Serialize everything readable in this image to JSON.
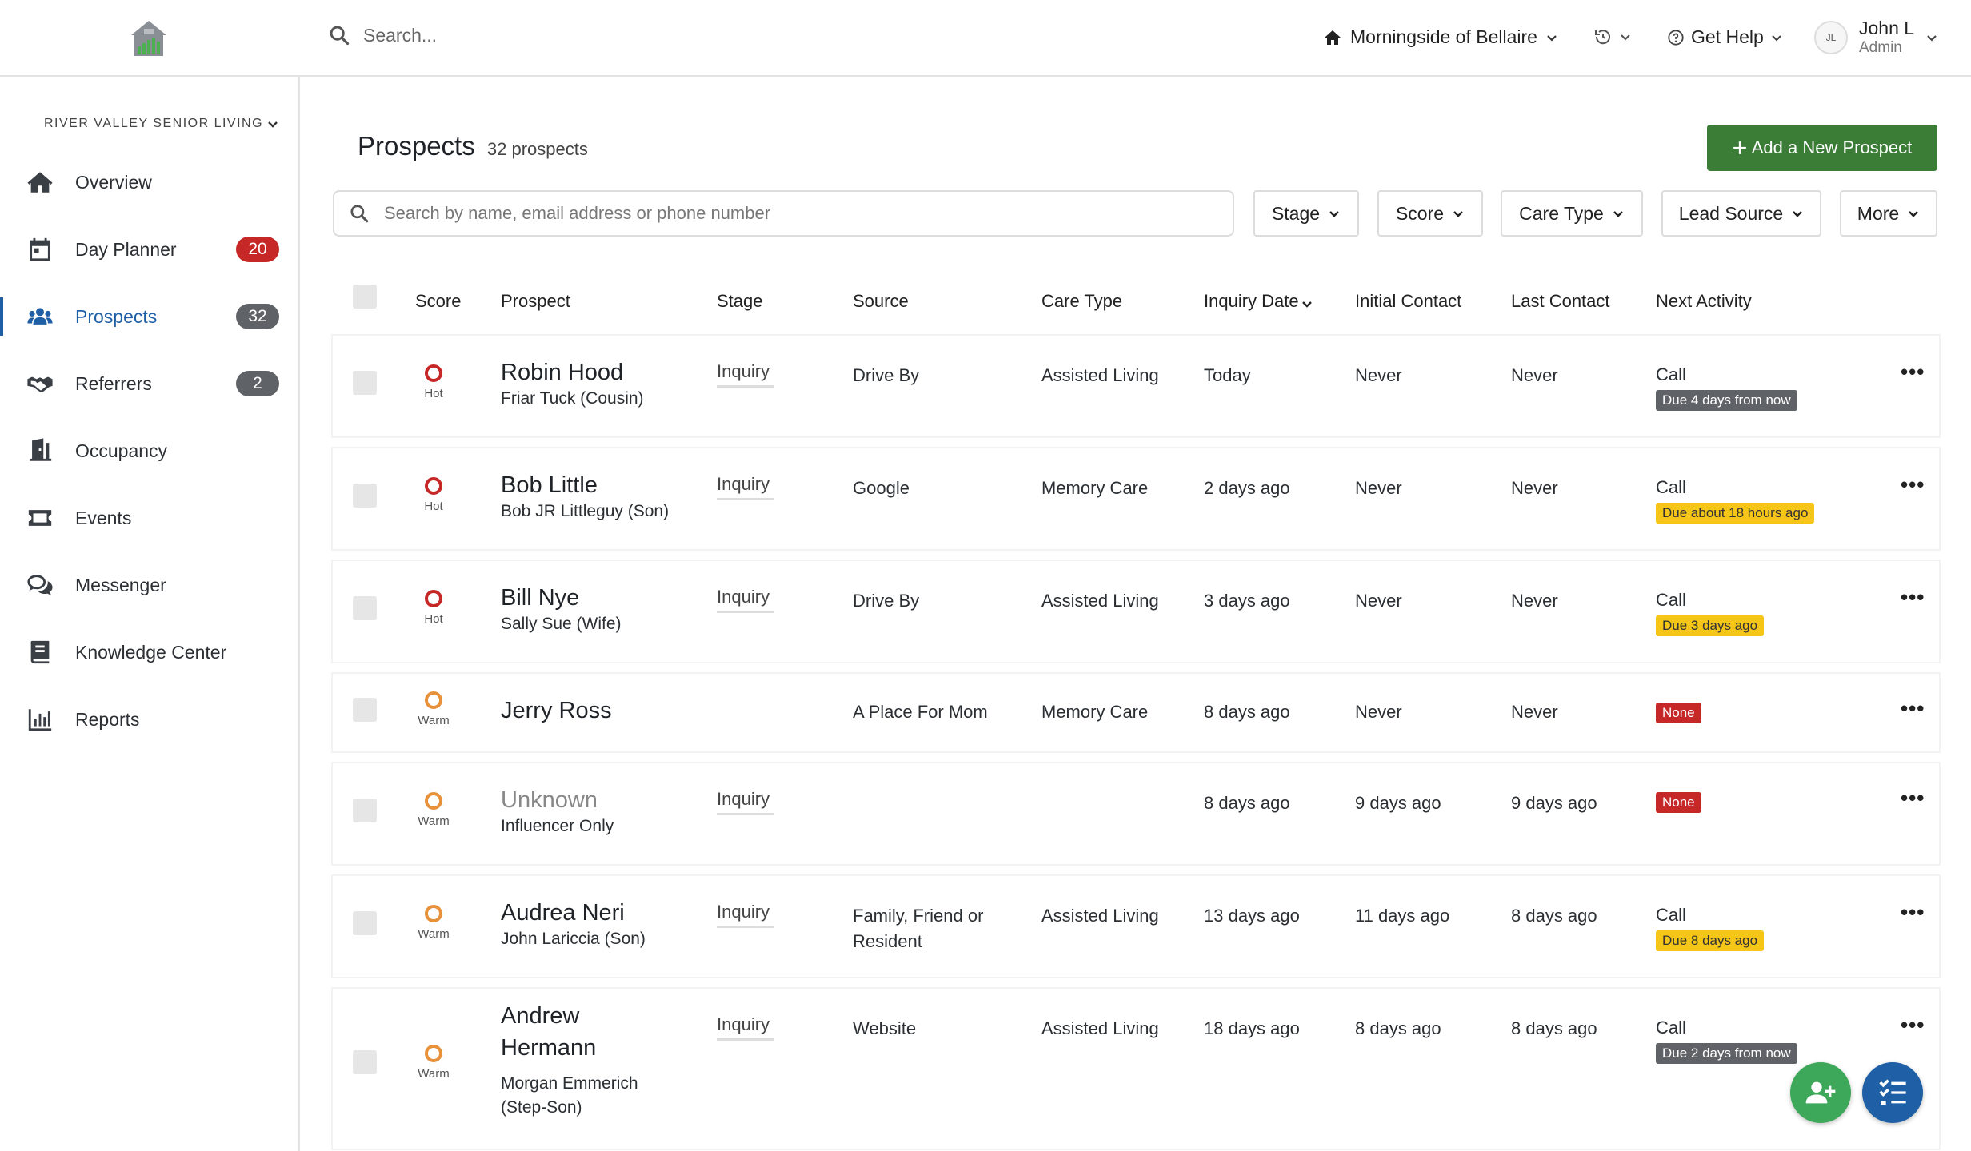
{
  "topbar": {
    "search_placeholder": "Search...",
    "community": "Morningside of Bellaire",
    "help": "Get Help",
    "user_initials": "JL",
    "user_name": "John L",
    "user_role": "Admin"
  },
  "sidebar": {
    "org": "RIVER VALLEY SENIOR LIVING",
    "items": [
      {
        "label": "Overview",
        "icon": "home-icon"
      },
      {
        "label": "Day Planner",
        "icon": "calendar-icon",
        "badge": "20",
        "badge_color": "#c62828"
      },
      {
        "label": "Prospects",
        "icon": "people-icon",
        "badge": "32",
        "badge_color": "#5f6368",
        "active": true
      },
      {
        "label": "Referrers",
        "icon": "handshake-icon",
        "badge": "2",
        "badge_color": "#5f6368"
      },
      {
        "label": "Occupancy",
        "icon": "door-icon"
      },
      {
        "label": "Events",
        "icon": "ticket-icon"
      },
      {
        "label": "Messenger",
        "icon": "chat-icon"
      },
      {
        "label": "Knowledge Center",
        "icon": "book-icon"
      },
      {
        "label": "Reports",
        "icon": "bar-chart-icon"
      }
    ]
  },
  "main": {
    "title": "Prospects",
    "count": "32 prospects",
    "add_button": "Add a New Prospect",
    "search_placeholder": "Search by name, email address or phone number",
    "filters": [
      "Stage",
      "Score",
      "Care Type",
      "Lead Source",
      "More"
    ],
    "columns": [
      "Score",
      "Prospect",
      "Stage",
      "Source",
      "Care Type",
      "Inquiry Date",
      "Initial Contact",
      "Last Contact",
      "Next Activity"
    ]
  },
  "rows": [
    {
      "score": "Hot",
      "name": "Robin Hood",
      "sub": "Friar Tuck (Cousin)",
      "stage": "Inquiry",
      "source": "Drive By",
      "care": "Assisted Living",
      "inquiry": "Today",
      "initial": "Never",
      "last": "Never",
      "activity": "Call",
      "due": "Due 4 days from now",
      "due_style": "gray"
    },
    {
      "score": "Hot",
      "name": "Bob Little",
      "sub": "Bob JR Littleguy (Son)",
      "stage": "Inquiry",
      "source": "Google",
      "care": "Memory Care",
      "inquiry": "2 days ago",
      "initial": "Never",
      "last": "Never",
      "activity": "Call",
      "due": "Due about 18 hours ago",
      "due_style": "yellow"
    },
    {
      "score": "Hot",
      "name": "Bill Nye",
      "sub": "Sally Sue (Wife)",
      "stage": "Inquiry",
      "source": "Drive By",
      "care": "Assisted Living",
      "inquiry": "3 days ago",
      "initial": "Never",
      "last": "Never",
      "activity": "Call",
      "due": "Due 3 days ago",
      "due_style": "yellow"
    },
    {
      "score": "Warm",
      "name": "Jerry Ross",
      "sub": "",
      "stage": "",
      "source": "A Place For Mom",
      "care": "Memory Care",
      "inquiry": "8 days ago",
      "initial": "Never",
      "last": "Never",
      "activity": "",
      "due": "None",
      "due_style": "red"
    },
    {
      "score": "Warm",
      "name": "Unknown",
      "sub": "Influencer Only",
      "stage": "Inquiry",
      "source": "",
      "care": "",
      "inquiry": "8 days ago",
      "initial": "9 days ago",
      "last": "9 days ago",
      "activity": "",
      "due": "None",
      "due_style": "red"
    },
    {
      "score": "Warm",
      "name": "Audrea Neri",
      "sub": "John Lariccia (Son)",
      "stage": "Inquiry",
      "source": "Family, Friend or Resident",
      "care": "Assisted Living",
      "inquiry": "13 days ago",
      "initial": "11 days ago",
      "last": "8 days ago",
      "activity": "Call",
      "due": "Due 8 days ago",
      "due_style": "yellow"
    },
    {
      "score": "Warm",
      "name": "Andrew Hermann",
      "sub": "Morgan Emmerich (Step-Son)",
      "stage": "Inquiry",
      "source": "Website",
      "care": "Assisted Living",
      "inquiry": "18 days ago",
      "initial": "8 days ago",
      "last": "8 days ago",
      "activity": "Call",
      "due": "Due 2 days from now",
      "due_style": "gray"
    }
  ],
  "colors": {
    "accent": "#1f5fa6",
    "success": "#3b7d36",
    "hot": "#c62828",
    "warm": "#e8913b"
  }
}
